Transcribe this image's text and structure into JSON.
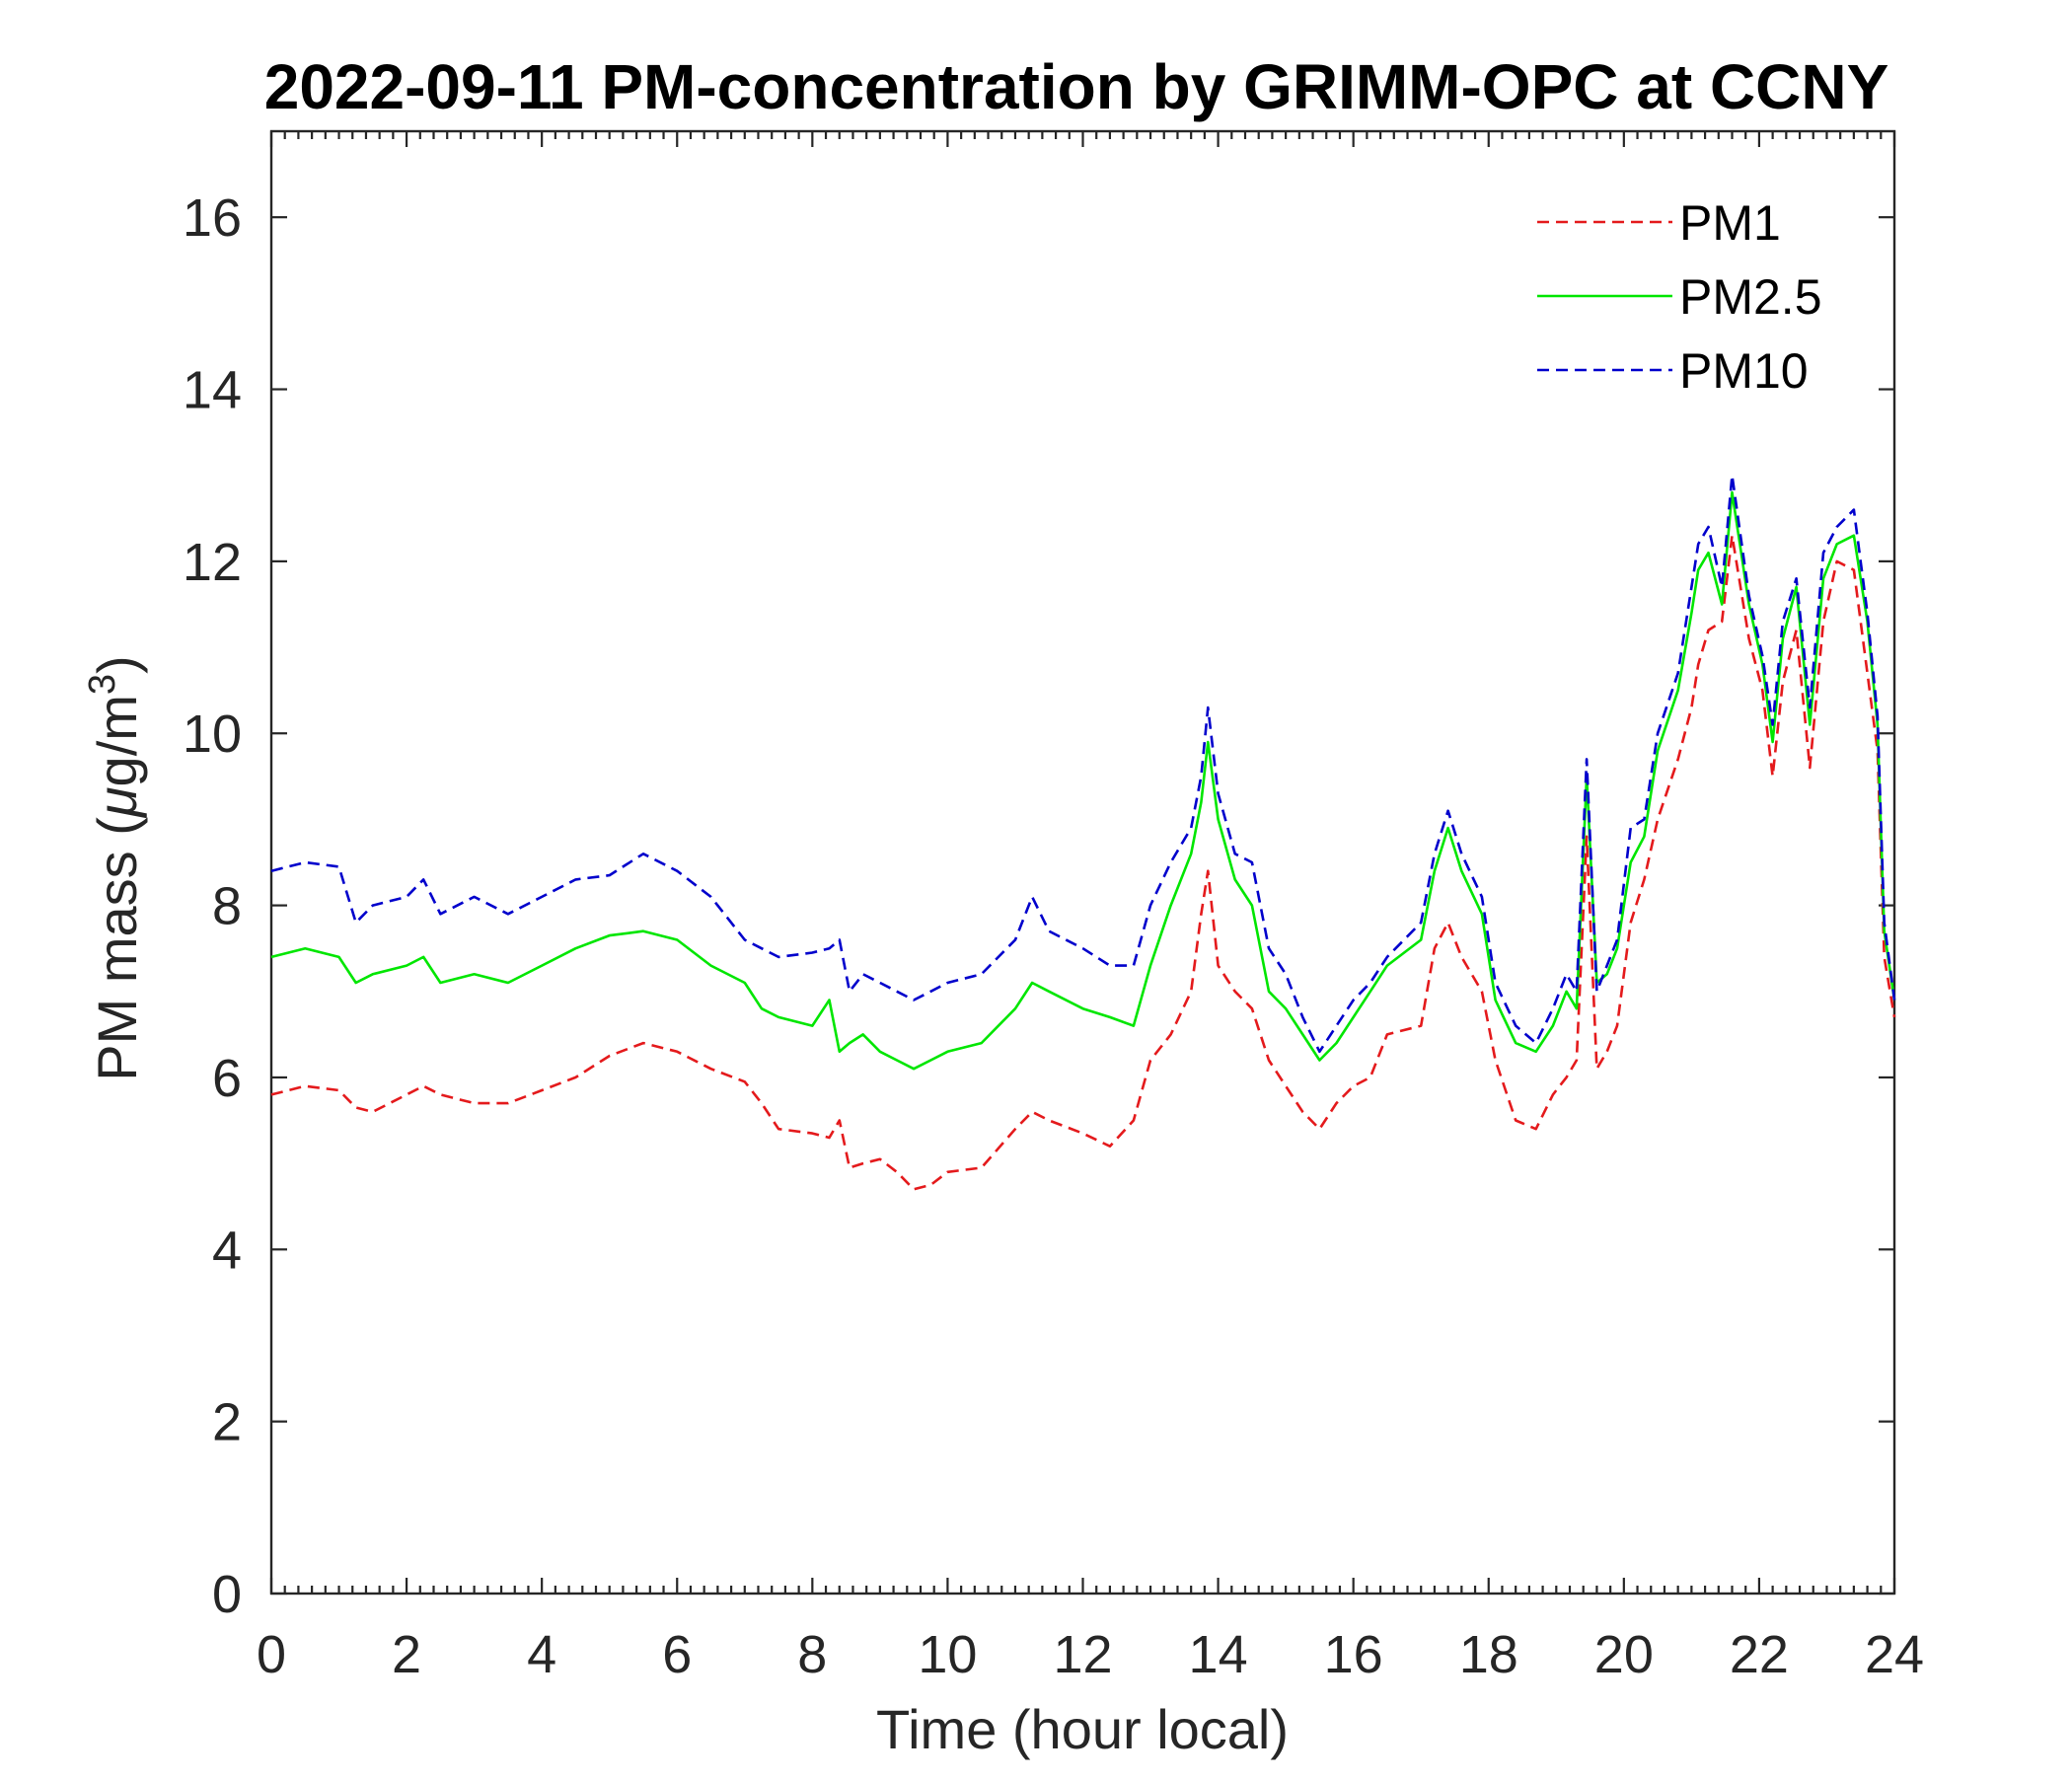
{
  "chart_data": {
    "type": "line",
    "title": "2022-09-11 PM-concentration by GRIMM-OPC at CCNY",
    "xlabel": "Time (hour local)",
    "ylabel": "PM mass (μg/m3)",
    "ylabel_parts": {
      "prefix": "PM mass (",
      "mu": "μ",
      "unit": "g/m",
      "superscript": "3",
      "suffix": ")"
    },
    "xlim": [
      0,
      24
    ],
    "ylim": [
      0,
      17
    ],
    "xticks": [
      0,
      2,
      4,
      6,
      8,
      10,
      12,
      14,
      16,
      18,
      20,
      22,
      24
    ],
    "yticks": [
      0,
      2,
      4,
      6,
      8,
      10,
      12,
      14,
      16
    ],
    "xtick_labels": [
      "0",
      "2",
      "4",
      "6",
      "8",
      "10",
      "12",
      "14",
      "16",
      "18",
      "20",
      "22",
      "24"
    ],
    "ytick_labels": [
      "0",
      "2",
      "4",
      "6",
      "8",
      "10",
      "12",
      "14",
      "16"
    ],
    "x_minor_step": 0.2,
    "grid": false,
    "legend_position": "top-right",
    "series": [
      {
        "name": "PM1",
        "color": "#e41a1c",
        "style": "dashed",
        "x": [
          0,
          0.5,
          1,
          1.25,
          1.5,
          2,
          2.25,
          2.5,
          3,
          3.5,
          4,
          4.5,
          5,
          5.5,
          6,
          6.5,
          7,
          7.25,
          7.5,
          8,
          8.25,
          8.4,
          8.55,
          8.75,
          9,
          9.25,
          9.5,
          9.75,
          10,
          10.5,
          11,
          11.25,
          11.5,
          12,
          12.4,
          12.75,
          13,
          13.3,
          13.6,
          13.75,
          13.85,
          14,
          14.25,
          14.5,
          14.75,
          15,
          15.25,
          15.5,
          15.75,
          16,
          16.25,
          16.5,
          17,
          17.2,
          17.4,
          17.6,
          17.9,
          18.1,
          18.4,
          18.7,
          18.95,
          19.15,
          19.3,
          19.45,
          19.6,
          19.75,
          19.9,
          20.1,
          20.3,
          20.5,
          20.8,
          21,
          21.1,
          21.25,
          21.45,
          21.6,
          21.85,
          22.05,
          22.2,
          22.35,
          22.55,
          22.75,
          22.95,
          23.15,
          23.4,
          23.6,
          23.75,
          23.85,
          24
        ],
        "values": [
          5.8,
          5.9,
          5.85,
          5.65,
          5.6,
          5.8,
          5.9,
          5.8,
          5.7,
          5.7,
          5.85,
          6.0,
          6.25,
          6.4,
          6.3,
          6.1,
          5.95,
          5.7,
          5.4,
          5.35,
          5.3,
          5.5,
          4.95,
          5.0,
          5.05,
          4.9,
          4.7,
          4.75,
          4.9,
          4.95,
          5.4,
          5.6,
          5.5,
          5.35,
          5.2,
          5.5,
          6.2,
          6.5,
          7.0,
          7.9,
          8.4,
          7.3,
          7.0,
          6.8,
          6.2,
          5.9,
          5.6,
          5.4,
          5.7,
          5.9,
          6.0,
          6.5,
          6.6,
          7.5,
          7.8,
          7.4,
          7.0,
          6.2,
          5.5,
          5.4,
          5.8,
          6.0,
          6.2,
          8.8,
          6.1,
          6.3,
          6.6,
          7.8,
          8.3,
          9.0,
          9.7,
          10.3,
          10.8,
          11.2,
          11.3,
          12.3,
          11.1,
          10.5,
          9.5,
          10.6,
          11.2,
          9.6,
          11.3,
          12.0,
          11.9,
          10.7,
          9.8,
          7.4,
          6.7
        ]
      },
      {
        "name": "PM2.5",
        "color": "#00e600",
        "style": "solid",
        "x": [
          0,
          0.5,
          1,
          1.25,
          1.5,
          2,
          2.25,
          2.5,
          3,
          3.5,
          4,
          4.5,
          5,
          5.5,
          6,
          6.5,
          7,
          7.25,
          7.5,
          8,
          8.25,
          8.4,
          8.55,
          8.75,
          9,
          9.25,
          9.5,
          9.75,
          10,
          10.5,
          11,
          11.25,
          11.5,
          12,
          12.4,
          12.75,
          13,
          13.3,
          13.6,
          13.75,
          13.85,
          14,
          14.25,
          14.5,
          14.75,
          15,
          15.25,
          15.5,
          15.75,
          16,
          16.25,
          16.5,
          17,
          17.2,
          17.4,
          17.6,
          17.9,
          18.1,
          18.4,
          18.7,
          18.95,
          19.15,
          19.3,
          19.45,
          19.6,
          19.75,
          19.9,
          20.1,
          20.3,
          20.5,
          20.8,
          21,
          21.1,
          21.25,
          21.45,
          21.6,
          21.85,
          22.05,
          22.2,
          22.35,
          22.55,
          22.75,
          22.95,
          23.15,
          23.4,
          23.6,
          23.75,
          23.85,
          24
        ],
        "values": [
          7.4,
          7.5,
          7.4,
          7.1,
          7.2,
          7.3,
          7.4,
          7.1,
          7.2,
          7.1,
          7.3,
          7.5,
          7.65,
          7.7,
          7.6,
          7.3,
          7.1,
          6.8,
          6.7,
          6.6,
          6.9,
          6.3,
          6.4,
          6.5,
          6.3,
          6.2,
          6.1,
          6.2,
          6.3,
          6.4,
          6.8,
          7.1,
          7.0,
          6.8,
          6.7,
          6.6,
          7.3,
          8.0,
          8.6,
          9.2,
          9.9,
          9.0,
          8.3,
          8.0,
          7.0,
          6.8,
          6.5,
          6.2,
          6.4,
          6.7,
          7.0,
          7.3,
          7.6,
          8.4,
          8.9,
          8.4,
          7.9,
          6.9,
          6.4,
          6.3,
          6.6,
          7.0,
          6.8,
          9.5,
          7.1,
          7.2,
          7.5,
          8.5,
          8.8,
          9.8,
          10.5,
          11.4,
          11.9,
          12.1,
          11.5,
          12.8,
          11.5,
          10.8,
          9.9,
          11.1,
          11.7,
          10.1,
          11.8,
          12.2,
          12.3,
          11.3,
          10.1,
          7.7,
          6.9
        ]
      },
      {
        "name": "PM10",
        "color": "#0000cc",
        "style": "dashed",
        "x": [
          0,
          0.5,
          1,
          1.25,
          1.5,
          2,
          2.25,
          2.5,
          3,
          3.5,
          4,
          4.5,
          5,
          5.5,
          6,
          6.5,
          7,
          7.25,
          7.5,
          8,
          8.25,
          8.4,
          8.55,
          8.75,
          9,
          9.25,
          9.5,
          9.75,
          10,
          10.5,
          11,
          11.25,
          11.5,
          12,
          12.4,
          12.75,
          13,
          13.3,
          13.6,
          13.75,
          13.85,
          14,
          14.25,
          14.5,
          14.75,
          15,
          15.25,
          15.5,
          15.75,
          16,
          16.25,
          16.5,
          17,
          17.2,
          17.4,
          17.6,
          17.9,
          18.1,
          18.4,
          18.7,
          18.95,
          19.15,
          19.3,
          19.45,
          19.6,
          19.75,
          19.9,
          20.1,
          20.3,
          20.5,
          20.8,
          21,
          21.1,
          21.25,
          21.45,
          21.6,
          21.85,
          22.05,
          22.2,
          22.35,
          22.55,
          22.75,
          22.95,
          23.15,
          23.4,
          23.6,
          23.75,
          23.85,
          24
        ],
        "values": [
          8.4,
          8.5,
          8.45,
          7.8,
          8.0,
          8.1,
          8.3,
          7.9,
          8.1,
          7.9,
          8.1,
          8.3,
          8.35,
          8.6,
          8.4,
          8.1,
          7.6,
          7.5,
          7.4,
          7.45,
          7.5,
          7.6,
          7.0,
          7.2,
          7.1,
          7.0,
          6.9,
          7.0,
          7.1,
          7.2,
          7.6,
          8.1,
          7.7,
          7.5,
          7.3,
          7.3,
          8.0,
          8.5,
          8.9,
          9.5,
          10.3,
          9.3,
          8.6,
          8.5,
          7.5,
          7.2,
          6.7,
          6.3,
          6.6,
          6.9,
          7.1,
          7.4,
          7.8,
          8.6,
          9.1,
          8.6,
          8.1,
          7.1,
          6.6,
          6.4,
          6.8,
          7.2,
          7.0,
          9.7,
          7.0,
          7.3,
          7.6,
          8.9,
          9.0,
          10.0,
          10.7,
          11.7,
          12.2,
          12.4,
          11.7,
          13.0,
          11.6,
          10.9,
          10.1,
          11.3,
          11.8,
          10.3,
          12.1,
          12.4,
          12.6,
          11.4,
          10.2,
          7.8,
          6.9
        ]
      }
    ]
  }
}
